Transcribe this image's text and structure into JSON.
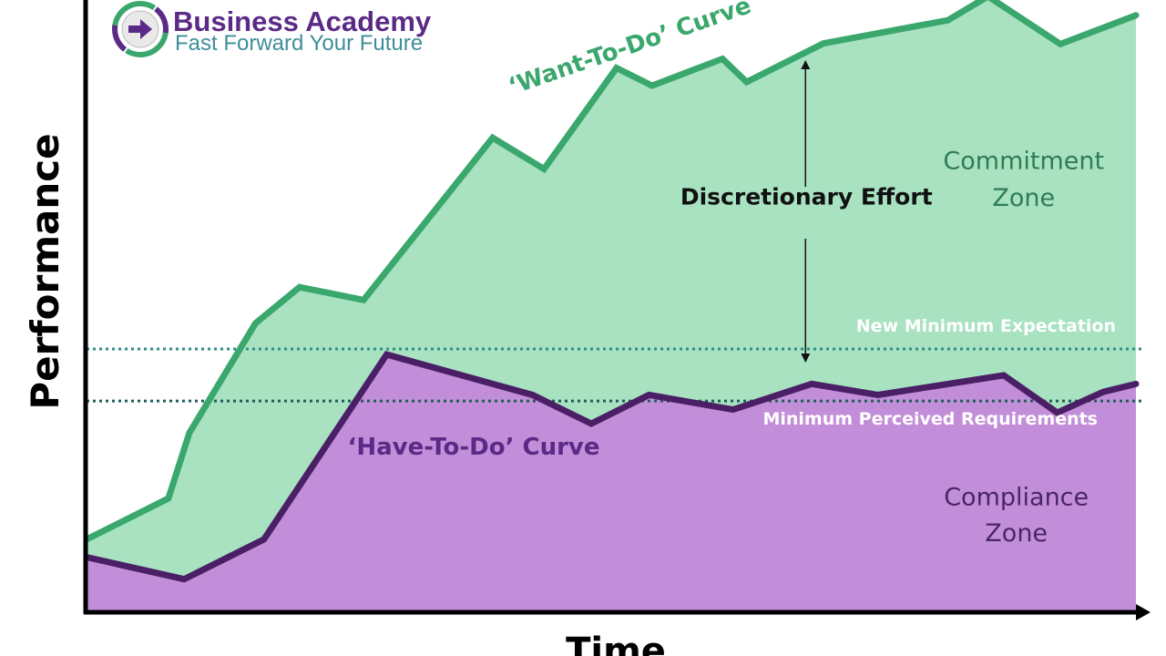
{
  "logo": {
    "title": "Business Academy",
    "tagline": "Fast Forward Your Future",
    "icon": "arrow-right-icon",
    "colors": {
      "title": "#5b2a86",
      "tagline": "#3f8e9a",
      "ring_green": "#3aa76d",
      "ring_purple": "#5b2a86"
    }
  },
  "chart_data": {
    "type": "area",
    "xlabel": "Time",
    "ylabel": "Performance",
    "xlim": [
      0,
      100
    ],
    "ylim": [
      0,
      100
    ],
    "series": [
      {
        "name": "‘Want-To-Do’ Curve",
        "color": "#3aa76d",
        "fill": "#a8e2c1",
        "x": [
          0,
          7.8,
          9.8,
          16.1,
          20.3,
          26.4,
          38.7,
          43.6,
          50.5,
          53.9,
          60.6,
          62.9,
          70.2,
          82.1,
          85.9,
          92.8,
          100
        ],
        "y": [
          11.9,
          18.6,
          29.3,
          47.2,
          53.1,
          51.0,
          77.5,
          72.4,
          88.9,
          86.0,
          90.4,
          86.6,
          92.9,
          96.7,
          100.6,
          92.8,
          97.5
        ]
      },
      {
        "name": "‘Have-To-Do’ Curve",
        "color": "#4a1f66",
        "fill": "#c38ed9",
        "x": [
          0,
          9.3,
          16.9,
          28.6,
          42.5,
          48.1,
          53.6,
          61.6,
          69.1,
          75.4,
          87.4,
          92.5,
          96.9,
          100
        ],
        "y": [
          9.0,
          5.4,
          11.9,
          42.1,
          35.5,
          30.8,
          35.5,
          33.1,
          37.3,
          35.5,
          38.7,
          32.6,
          36.0,
          37.3
        ]
      }
    ],
    "reference_lines": [
      {
        "label": "New Minimum Expectation",
        "y": 43.0,
        "color": "#2f8d85",
        "label_color": "#ffffff"
      },
      {
        "label": "Minimum Perceived Requirements",
        "y": 34.5,
        "color": "#1f5f58",
        "label_color": "#ffffff"
      }
    ],
    "annotations": [
      {
        "text": "Discretionary Effort",
        "x": 68.6,
        "y": 66.6,
        "color": "#111111"
      },
      {
        "text": "Commitment",
        "x": 89.3,
        "y": 72.4,
        "color": "#2f7d55"
      },
      {
        "text": "Zone",
        "x": 89.3,
        "y": 66.4,
        "color": "#2f7d55"
      },
      {
        "text": "Compliance",
        "x": 88.6,
        "y": 17.5,
        "color": "#4a2566"
      },
      {
        "text": "Zone",
        "x": 88.6,
        "y": 11.6,
        "color": "#4a2566"
      }
    ],
    "grid": false,
    "legend": "none"
  }
}
